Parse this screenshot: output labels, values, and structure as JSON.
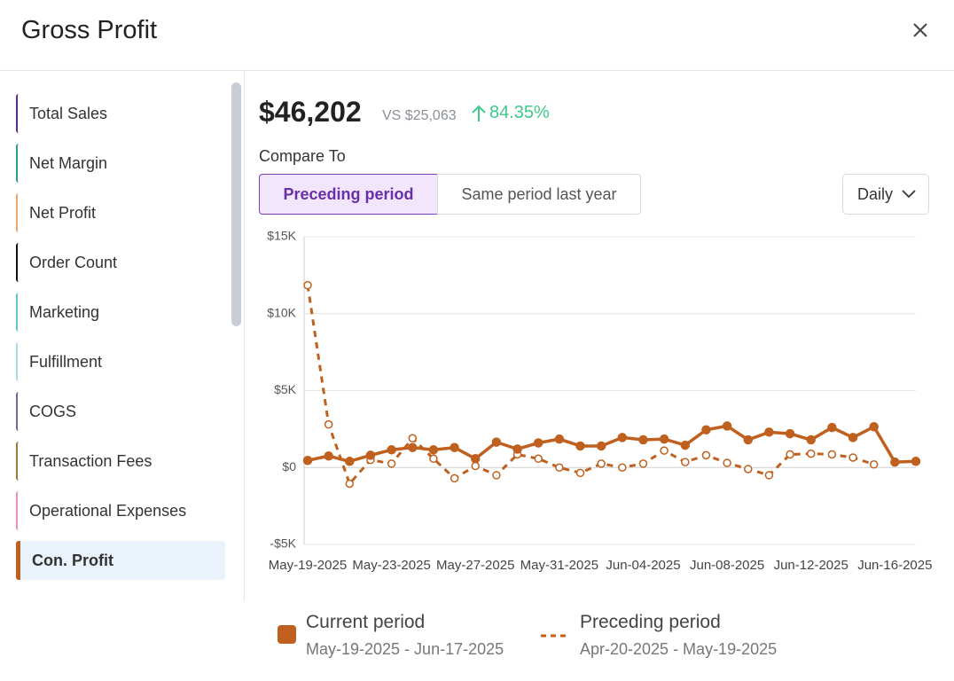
{
  "header": {
    "title": "Gross Profit"
  },
  "sidebar": {
    "items": [
      {
        "label": "Total Sales",
        "color": "#5b2a86"
      },
      {
        "label": "Net Margin",
        "color": "#2a9d8f"
      },
      {
        "label": "Net Profit",
        "color": "#f0a56a"
      },
      {
        "label": "Order Count",
        "color": "#111111"
      },
      {
        "label": "Marketing",
        "color": "#5fc9d0"
      },
      {
        "label": "Fulfillment",
        "color": "#a8dbe0"
      },
      {
        "label": "COGS",
        "color": "#6b6f9a"
      },
      {
        "label": "Transaction Fees",
        "color": "#9c7a3c"
      },
      {
        "label": "Operational Expenses",
        "color": "#e88fc0"
      },
      {
        "label": "Con. Profit",
        "color": "#c0601e",
        "active": true
      }
    ]
  },
  "summary": {
    "value": "$46,202",
    "compare": "VS $25,063",
    "change": "84.35%"
  },
  "compare_to": {
    "label": "Compare To",
    "options": [
      "Preceding period",
      "Same period last year"
    ],
    "selected": 0
  },
  "granularity": "Daily",
  "chart_data": {
    "type": "line",
    "categories": [
      "May-19-2025",
      null,
      null,
      null,
      "May-23-2025",
      null,
      null,
      null,
      "May-27-2025",
      null,
      null,
      null,
      "May-31-2025",
      null,
      null,
      null,
      "Jun-04-2025",
      null,
      null,
      null,
      "Jun-08-2025",
      null,
      null,
      null,
      "Jun-12-2025",
      null,
      null,
      null,
      "Jun-16-2025",
      null
    ],
    "series": [
      {
        "name": "Current period",
        "range": "May-19-2025 - Jun-17-2025",
        "color": "#c0601e",
        "style": "solid",
        "values": [
          460,
          750,
          400,
          800,
          1150,
          1300,
          1150,
          1300,
          575,
          1650,
          1200,
          1600,
          1850,
          1400,
          1400,
          1950,
          1800,
          1850,
          1450,
          2450,
          2700,
          1800,
          2300,
          2200,
          1800,
          2600,
          1950,
          2650,
          350,
          400
        ]
      },
      {
        "name": "Preceding period",
        "range": "Apr-20-2025 - May-19-2025",
        "color": "#c0601e",
        "style": "dashed",
        "values": [
          11850,
          2800,
          -1050,
          500,
          250,
          1900,
          575,
          -700,
          100,
          -500,
          850,
          575,
          0,
          -350,
          250,
          0,
          250,
          1100,
          350,
          800,
          300,
          -100,
          -500,
          850,
          900,
          850,
          650,
          200,
          null,
          null
        ]
      }
    ],
    "ylim": [
      -5000,
      15000
    ],
    "yticks": [
      {
        "value": -5000,
        "label": "-$5K"
      },
      {
        "value": 0,
        "label": "$0"
      },
      {
        "value": 5000,
        "label": "$5K"
      },
      {
        "value": 10000,
        "label": "$10K"
      },
      {
        "value": 15000,
        "label": "$15K"
      }
    ],
    "grid": true
  }
}
